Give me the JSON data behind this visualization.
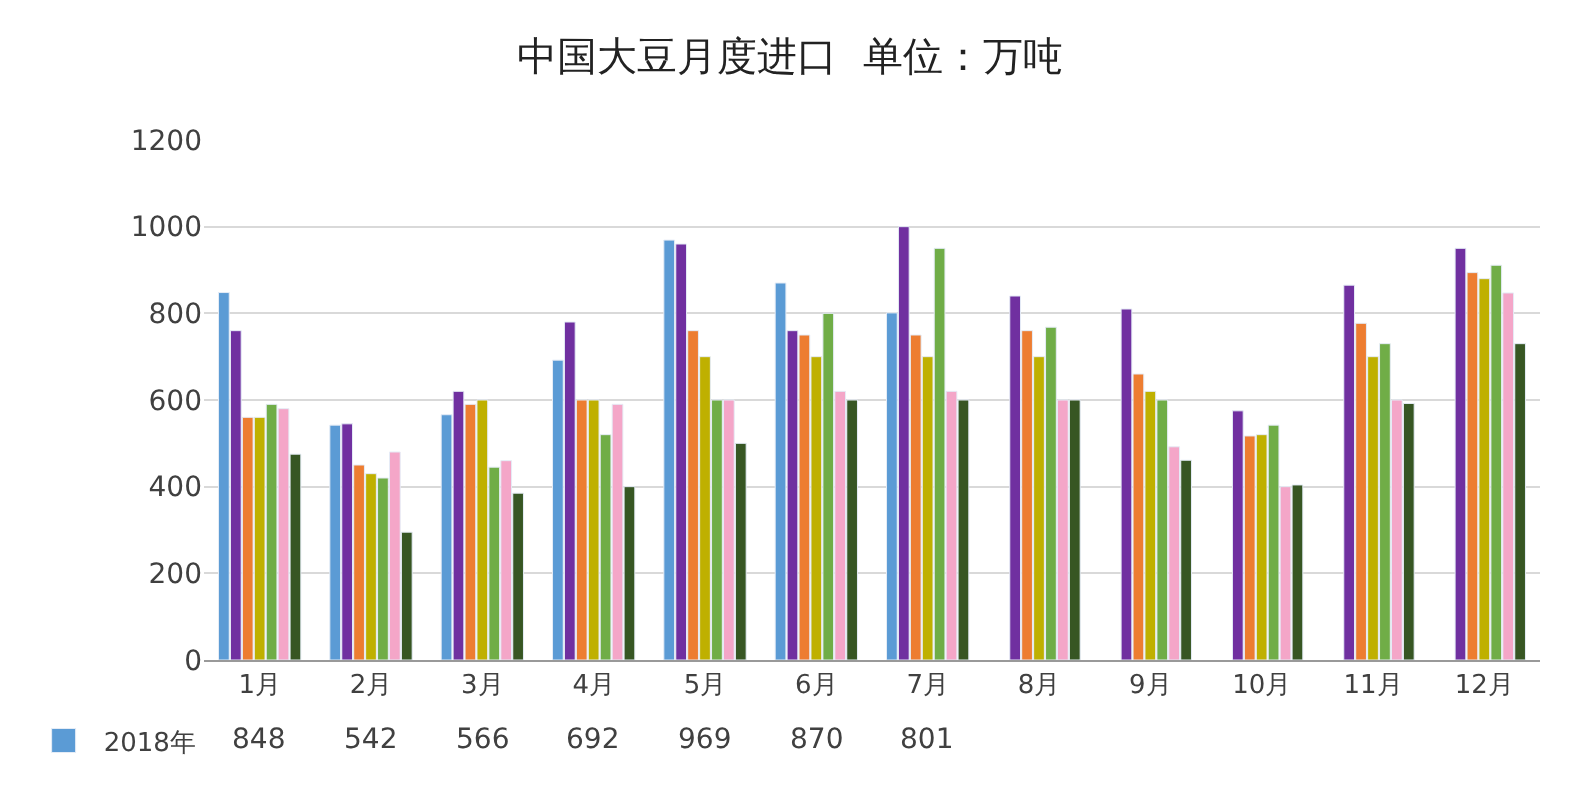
{
  "chart_data": {
    "type": "bar",
    "title": "中国大豆月度进口  单位：万吨",
    "categories": [
      "1月",
      "2月",
      "3月",
      "4月",
      "5月",
      "6月",
      "7月",
      "8月",
      "9月",
      "10月",
      "11月",
      "12月"
    ],
    "ylim": [
      0,
      1200
    ],
    "yticks": [
      0,
      200,
      400,
      600,
      800,
      1000,
      1200
    ],
    "grid": "y",
    "legend": "bottom",
    "series": [
      {
        "name": "2018年",
        "color": "#5b9bd5",
        "values": [
          848,
          542,
          566,
          692,
          969,
          870,
          801,
          null,
          null,
          null,
          null,
          null
        ],
        "value_labels": [
          "848",
          "542",
          "566",
          "692",
          "969",
          "870",
          "801",
          null,
          null,
          null,
          null,
          null
        ]
      },
      {
        "color": "#7030a0",
        "values": [
          760,
          545,
          620,
          780,
          960,
          760,
          1000,
          840,
          810,
          575,
          865,
          950
        ]
      },
      {
        "color": "#ed7d31",
        "values": [
          560,
          450,
          590,
          600,
          760,
          750,
          750,
          760,
          660,
          517,
          777,
          894
        ]
      },
      {
        "color": "#bfb000",
        "values": [
          560,
          430,
          600,
          600,
          700,
          700,
          700,
          700,
          620,
          520,
          700,
          880
        ]
      },
      {
        "color": "#70ad47",
        "values": [
          590,
          420,
          445,
          520,
          600,
          800,
          950,
          768,
          600,
          542,
          730,
          911
        ]
      },
      {
        "color": "#f4a6c8",
        "values": [
          580,
          480,
          460,
          590,
          600,
          620,
          620,
          600,
          492,
          400,
          600,
          847
        ]
      },
      {
        "color": "#375623",
        "values": [
          475,
          295,
          385,
          400,
          500,
          600,
          600,
          600,
          461,
          404,
          592,
          730
        ]
      }
    ]
  }
}
